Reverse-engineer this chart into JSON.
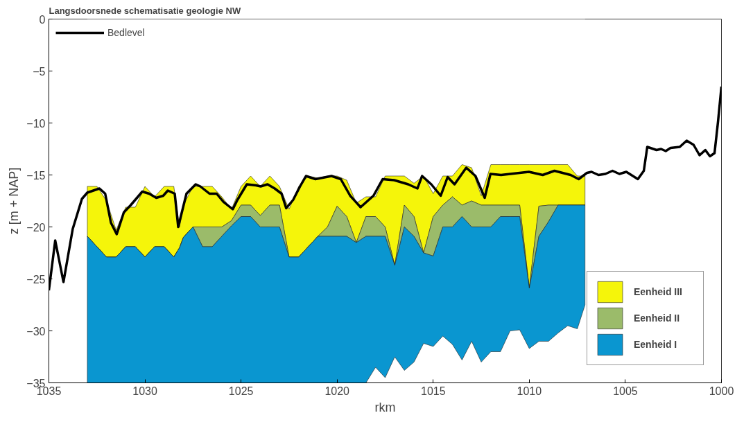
{
  "chart_data": {
    "type": "area",
    "stacked": true,
    "title": "Langsdoorsnede schematisatie geologie NW",
    "xlabel": "rkm",
    "ylabel": "z [m + NAP]",
    "xlim": [
      1035,
      1000
    ],
    "xticks": [
      1035,
      1030,
      1025,
      1020,
      1015,
      1010,
      1005,
      1000
    ],
    "ylim": [
      -35,
      0
    ],
    "yticks": [
      -35,
      -30,
      -25,
      -20,
      -15,
      -10,
      -5,
      0
    ],
    "grid": false,
    "legend": "top left",
    "x": [
      1033,
      1032.5,
      1032,
      1031.5,
      1031,
      1030.5,
      1030,
      1029.5,
      1029,
      1028.5,
      1028.2,
      1028,
      1027.5,
      1027,
      1026.5,
      1026,
      1025.5,
      1025,
      1024.5,
      1024,
      1023.5,
      1023,
      1022.5,
      1022,
      1021.5,
      1021,
      1020.5,
      1020,
      1019.5,
      1019,
      1018.5,
      1018,
      1017.5,
      1017,
      1016.5,
      1016,
      1015.5,
      1015,
      1014.5,
      1014,
      1013.5,
      1013,
      1012.5,
      1012,
      1011.5,
      1011,
      1010.5,
      1010,
      1009.5,
      1009,
      1008.5,
      1008,
      1007.5,
      1007.1
    ],
    "series": [
      {
        "color": "#ffffff",
        "values": [
          -16.1,
          -16.1,
          -17.5,
          -20.3,
          -18.1,
          -18.1,
          -16.1,
          -17.1,
          -16.1,
          -16.1,
          -20.0,
          -17.9,
          -16.1,
          -16.1,
          -16.1,
          -17.1,
          -18.3,
          -16.1,
          -15.1,
          -16.1,
          -15.1,
          -16.1,
          -18.3,
          -16.1,
          -15.1,
          -15.3,
          -15.1,
          -15.1,
          -15.5,
          -17.7,
          -17.1,
          -17.1,
          -15.1,
          -15.1,
          -15.1,
          -15.8,
          -15.1,
          -16.8,
          -15.1,
          -15.1,
          -14.0,
          -14.3,
          -17.0,
          -14.0,
          -14.0,
          -14.0,
          -14.0,
          -14.0,
          -14.0,
          -14.0,
          -14.0,
          -14.0,
          -15.1,
          -15.1
        ]
      },
      {
        "name": "Eenheid III",
        "color": "#f5f50a",
        "values": [
          -4.8,
          -5.8,
          -5.4,
          -2.6,
          -3.8,
          -3.8,
          -6.8,
          -4.8,
          -5.8,
          -6.8,
          -2.0,
          -3.1,
          -3.9,
          -3.9,
          -3.9,
          -2.9,
          -1.1,
          -1.8,
          -2.8,
          -2.8,
          -2.8,
          -1.8,
          -4.6,
          -6.8,
          -6.8,
          -5.6,
          -4.9,
          -2.9,
          -3.5,
          -3.8,
          -1.9,
          -1.9,
          -4.9,
          -8.6,
          -2.8,
          -3.2,
          -7.4,
          -2.2,
          -2.8,
          -2.0,
          -3.9,
          -3.2,
          -0.9,
          -3.9,
          -3.9,
          -3.9,
          -3.9,
          -11.9,
          -4.0,
          -3.9,
          -3.9,
          -3.9,
          -2.8,
          -2.8
        ]
      },
      {
        "name": "Eenheid II",
        "color": "#9bbb6a",
        "values": [
          0,
          0,
          0,
          0,
          0,
          0,
          0,
          0,
          0,
          0,
          0,
          0,
          0,
          -1.9,
          -1.9,
          -0.9,
          -0.5,
          -1.1,
          -1.1,
          -1.1,
          -2.1,
          -2.1,
          0,
          0,
          0,
          0,
          -0.9,
          -2.9,
          -1.9,
          0,
          -1.9,
          -1.9,
          -0.9,
          0,
          -2.1,
          -1.9,
          0,
          -3.8,
          -2.1,
          -2.9,
          -1.1,
          -2.5,
          -2.1,
          -2.1,
          -1.1,
          -1.1,
          -1.1,
          0,
          -2.9,
          -1.6,
          0,
          0,
          0,
          0
        ]
      },
      {
        "name": "Eenheid I",
        "color": "#0a96d0",
        "values": [
          -14.1,
          -13.1,
          -12.1,
          -12.1,
          -13.1,
          -13.1,
          -12.1,
          -13.1,
          -13.1,
          -12.1,
          -13.0,
          -14.0,
          -15.0,
          -13.1,
          -13.1,
          -14.1,
          -15.1,
          -16.0,
          -16.0,
          -15.0,
          -15.0,
          -15.0,
          -12.1,
          -12.1,
          -13.1,
          -14.1,
          -14.1,
          -14.1,
          -14.1,
          -13.5,
          -14.1,
          -12.6,
          -13.6,
          -8.8,
          -13.8,
          -12.1,
          -8.7,
          -8.7,
          -10.5,
          -11.3,
          -13.8,
          -11.0,
          -13.0,
          -12.0,
          -13.0,
          -11.0,
          -10.9,
          -5.8,
          -10.1,
          -11.5,
          -12.3,
          -11.6,
          -11.9,
          -9.6
        ]
      },
      {
        "name": "Bedlevel",
        "type": "line",
        "color": "#000000",
        "line_style": "solid",
        "x": [
          1035,
          1034.67,
          1034.24,
          1033.76,
          1033.28,
          1033.0,
          1032.37,
          1032.07,
          1031.77,
          1031.47,
          1031.1,
          1030.74,
          1030.14,
          1029.78,
          1029.41,
          1029.05,
          1028.81,
          1028.45,
          1028.27,
          1027.84,
          1027.36,
          1027.12,
          1026.64,
          1026.27,
          1025.91,
          1025.43,
          1025.19,
          1024.7,
          1024.22,
          1023.98,
          1023.62,
          1023.25,
          1022.89,
          1022.65,
          1022.29,
          1021.93,
          1021.62,
          1021.13,
          1020.29,
          1019.81,
          1019.32,
          1018.78,
          1018.11,
          1017.63,
          1017.03,
          1016.3,
          1015.82,
          1015.58,
          1015.1,
          1014.61,
          1014.25,
          1013.89,
          1013.28,
          1012.8,
          1012.32,
          1012.02,
          1011.47,
          1010.02,
          1009.3,
          1008.69,
          1007.85,
          1007.43,
          1007.0,
          1006.76,
          1006.4,
          1006.04,
          1005.67,
          1005.31,
          1004.95,
          1004.35,
          1004.04,
          1003.86,
          1003.38,
          1003.14,
          1002.9,
          1002.65,
          1002.17,
          1001.81,
          1001.45,
          1001.14,
          1000.84,
          1000.6,
          1000.36,
          1000.18,
          1000.0
        ],
        "values": [
          -26.1,
          -21.3,
          -25.3,
          -20.2,
          -17.3,
          -16.7,
          -16.3,
          -16.8,
          -19.6,
          -20.7,
          -18.6,
          -17.9,
          -16.6,
          -16.8,
          -17.2,
          -17.0,
          -16.5,
          -16.8,
          -20.0,
          -16.8,
          -15.9,
          -16.1,
          -16.8,
          -16.8,
          -17.6,
          -18.3,
          -17.4,
          -15.9,
          -16.0,
          -16.1,
          -15.9,
          -16.3,
          -16.8,
          -18.2,
          -17.4,
          -16.1,
          -15.1,
          -15.4,
          -15.1,
          -15.4,
          -17.0,
          -18.1,
          -17.0,
          -15.4,
          -15.5,
          -15.9,
          -16.3,
          -15.1,
          -15.9,
          -17.0,
          -15.2,
          -15.9,
          -14.3,
          -15.1,
          -17.2,
          -14.9,
          -15.0,
          -14.7,
          -15.0,
          -14.6,
          -15.0,
          -15.4,
          -14.8,
          -14.7,
          -15.0,
          -14.9,
          -14.6,
          -14.9,
          -14.7,
          -15.4,
          -14.6,
          -12.3,
          -12.6,
          -12.5,
          -12.7,
          -12.4,
          -12.3,
          -11.7,
          -12.1,
          -13.1,
          -12.6,
          -13.2,
          -12.9,
          -9.9,
          -6.5
        ]
      }
    ]
  }
}
